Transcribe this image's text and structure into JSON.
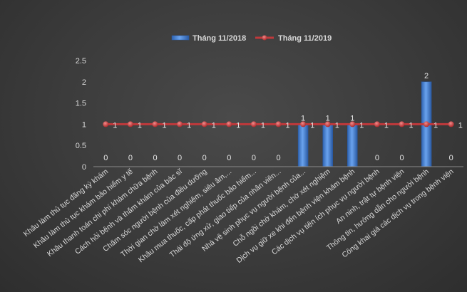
{
  "chart_data": {
    "type": "bar",
    "title": "",
    "xlabel": "",
    "ylabel": "",
    "ylim": [
      0,
      2.5
    ],
    "yticks": [
      0,
      0.5,
      1,
      1.5,
      2,
      2.5
    ],
    "ytick_labels": [
      "0",
      "0.5",
      "1",
      "1.5",
      "2",
      "2.5"
    ],
    "grid": false,
    "legend_position": "top-center",
    "categories": [
      "Khâu làm thủ tục đăng ký khám",
      "Khâu làm thủ tục khám bảo hiểm y tế",
      "Khâu thanh toán chi phí khám chữa bệnh",
      "Cách hỏi bệnh và thăm khám của bác sĩ",
      "Chăm sóc người bệnh của điều dưỡng",
      "Thời gian chờ làm xét nghiệm, siêu âm,...",
      "Khâu mua thuốc, cấp phát thuốc bảo hiểm...",
      "Thái độ ứng xử, giao tiếp của nhân viên...",
      "Nhà vệ sinh phục vụ người bệnh của...",
      "Chỗ ngồi chờ khám, chờ xét nghiệm",
      "Dịch vụ giữ xe khi đến bệnh viện khám bệnh",
      "Các dịch vụ tiện ích phục vụ người bệnh",
      "An ninh, trật tự bệnh viện",
      "Thông tin, hướng dẫn cho người bệnh",
      "Công khai giá các dịch vụ trong bệnh viện"
    ],
    "series": [
      {
        "name": "Tháng 11/2018",
        "type": "bar",
        "color": "#4a86d8",
        "values": [
          0,
          0,
          0,
          0,
          0,
          0,
          0,
          0,
          1,
          1,
          1,
          0,
          0,
          2,
          0
        ],
        "labels": [
          "0",
          "0",
          "0",
          "0",
          "0",
          "0",
          "0",
          "0",
          "1",
          "1",
          "1",
          "0",
          "0",
          "2",
          "0"
        ]
      },
      {
        "name": "Tháng 11/2019",
        "type": "line",
        "color": "#c0393b",
        "values": [
          1,
          1,
          1,
          1,
          1,
          1,
          1,
          1,
          1,
          1,
          1,
          1,
          1,
          1,
          1
        ],
        "labels": [
          "1",
          "1",
          "1",
          "1",
          "1",
          "1",
          "1",
          "1",
          "1",
          "1",
          "1",
          "1",
          "1",
          "1",
          "1"
        ]
      }
    ]
  }
}
